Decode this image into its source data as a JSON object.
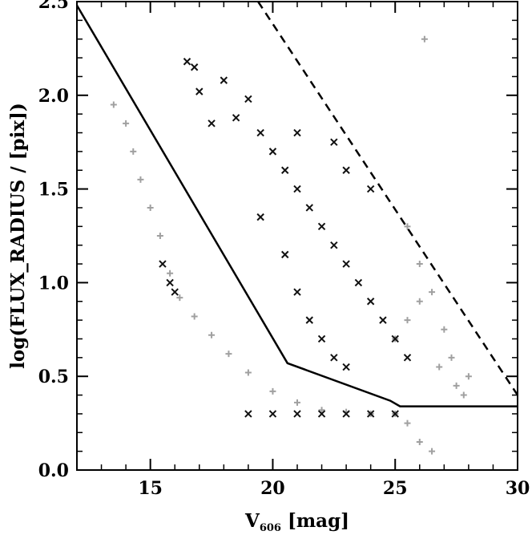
{
  "chart_data": {
    "type": "scatter",
    "title": "",
    "xlabel": {
      "main": "V",
      "subscript": "606",
      "unit": " [mag]"
    },
    "ylabel": "log(FLUX_RADIUS / [pix])",
    "xlim": [
      12,
      30
    ],
    "ylim": [
      0,
      2.5
    ],
    "x_ticks": [
      15,
      20,
      25,
      30
    ],
    "x_tick_labels": [
      "15",
      "20",
      "25",
      "30"
    ],
    "y_ticks": [
      0.0,
      0.5,
      1.0,
      1.5,
      2.0,
      2.5
    ],
    "y_tick_labels": [
      "0.0",
      "0.5",
      "1.0",
      "1.5",
      "2.0",
      "2.5"
    ],
    "grid": false,
    "legend": "none",
    "colors": {
      "gray_points": "#a0a0a0",
      "black_points": "#111111",
      "lines": "#000000"
    },
    "series": [
      {
        "marker": "plus",
        "color": "#a0a0a0",
        "points": [
          [
            13.5,
            1.95
          ],
          [
            14.0,
            1.85
          ],
          [
            14.3,
            1.7
          ],
          [
            14.6,
            1.55
          ],
          [
            15.0,
            1.4
          ],
          [
            15.4,
            1.25
          ],
          [
            15.8,
            1.05
          ],
          [
            16.2,
            0.92
          ],
          [
            16.8,
            0.82
          ],
          [
            17.5,
            0.72
          ],
          [
            18.2,
            0.62
          ],
          [
            19.0,
            0.52
          ],
          [
            20.0,
            0.42
          ],
          [
            21.0,
            0.36
          ],
          [
            22.0,
            0.32
          ],
          [
            23.0,
            0.31
          ],
          [
            24.0,
            0.3
          ],
          [
            25.0,
            0.3
          ],
          [
            25.5,
            0.25
          ],
          [
            26.0,
            0.15
          ],
          [
            26.5,
            0.1
          ],
          [
            25.0,
            0.7
          ],
          [
            25.5,
            0.8
          ],
          [
            26.0,
            0.9
          ],
          [
            26.5,
            0.95
          ],
          [
            27.0,
            0.75
          ],
          [
            27.3,
            0.6
          ],
          [
            27.5,
            0.45
          ],
          [
            26.2,
            2.3
          ],
          [
            28.0,
            0.5
          ],
          [
            25.5,
            1.3
          ],
          [
            26.0,
            1.1
          ],
          [
            26.8,
            0.55
          ],
          [
            27.8,
            0.4
          ]
        ]
      },
      {
        "marker": "cross",
        "color": "#111111",
        "points": [
          [
            16.5,
            2.18
          ],
          [
            16.8,
            2.15
          ],
          [
            17.0,
            2.02
          ],
          [
            18.0,
            2.08
          ],
          [
            19.0,
            1.98
          ],
          [
            17.5,
            1.85
          ],
          [
            18.5,
            1.88
          ],
          [
            19.5,
            1.8
          ],
          [
            20.0,
            1.7
          ],
          [
            20.5,
            1.6
          ],
          [
            21.0,
            1.5
          ],
          [
            21.5,
            1.4
          ],
          [
            22.0,
            1.3
          ],
          [
            22.5,
            1.2
          ],
          [
            23.0,
            1.1
          ],
          [
            23.5,
            1.0
          ],
          [
            24.0,
            0.9
          ],
          [
            24.5,
            0.8
          ],
          [
            25.0,
            0.7
          ],
          [
            25.5,
            0.6
          ],
          [
            19.5,
            1.35
          ],
          [
            20.5,
            1.15
          ],
          [
            21.0,
            0.95
          ],
          [
            21.5,
            0.8
          ],
          [
            22.0,
            0.7
          ],
          [
            22.5,
            0.6
          ],
          [
            23.0,
            0.55
          ],
          [
            15.5,
            1.1
          ],
          [
            15.8,
            1.0
          ],
          [
            16.0,
            0.95
          ],
          [
            19.0,
            0.3
          ],
          [
            20.0,
            0.3
          ],
          [
            21.0,
            0.3
          ],
          [
            22.0,
            0.3
          ],
          [
            23.0,
            0.3
          ],
          [
            24.0,
            0.3
          ],
          [
            25.0,
            0.3
          ],
          [
            24.0,
            1.5
          ],
          [
            23.0,
            1.6
          ],
          [
            22.5,
            1.75
          ],
          [
            21.0,
            1.8
          ]
        ]
      }
    ],
    "lines": [
      {
        "style": "solid",
        "points": [
          [
            12.0,
            2.48
          ],
          [
            20.6,
            0.57
          ],
          [
            24.8,
            0.37
          ],
          [
            25.2,
            0.34
          ],
          [
            30.0,
            0.34
          ]
        ]
      },
      {
        "style": "dashed",
        "points": [
          [
            19.4,
            2.5
          ],
          [
            30.0,
            0.4
          ]
        ]
      }
    ]
  }
}
